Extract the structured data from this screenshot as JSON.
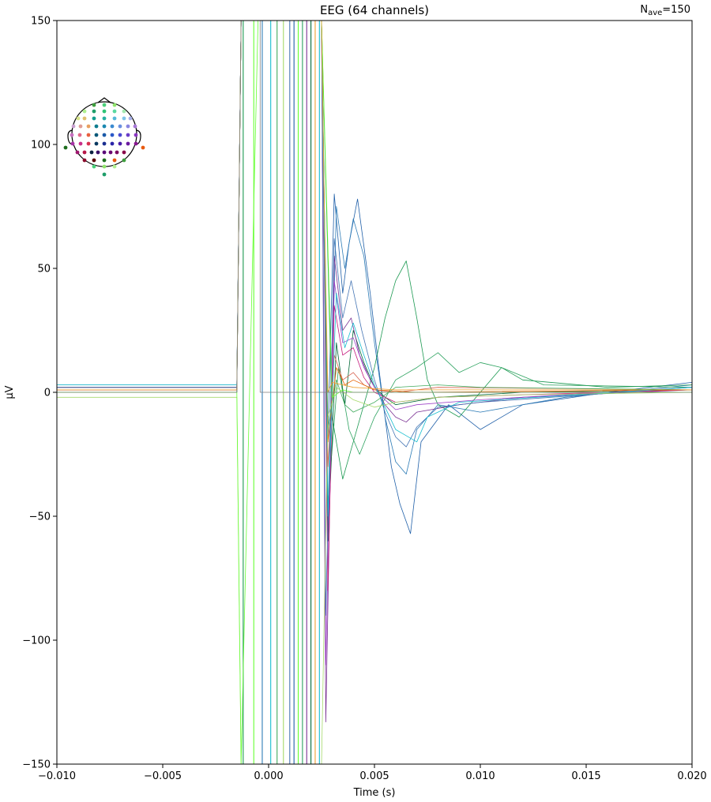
{
  "chart_data": {
    "type": "line",
    "title": "EEG (64 channels)",
    "nave": {
      "prefix": "N",
      "sub": "ave",
      "suffix": "=150"
    },
    "xlabel": "Time (s)",
    "ylabel": "µV",
    "xlim": [
      -0.01,
      0.02
    ],
    "ylim": [
      -150,
      150
    ],
    "xticks": [
      -0.01,
      -0.005,
      0.0,
      0.005,
      0.01,
      0.015,
      0.02
    ],
    "xtick_labels": [
      "−0.010",
      "−0.005",
      "0.000",
      "0.005",
      "0.010",
      "0.015",
      "0.020"
    ],
    "yticks": [
      -150,
      -100,
      -50,
      0,
      50,
      100,
      150
    ],
    "ytick_labels": [
      "−150",
      "−100",
      "−50",
      "0",
      "50",
      "100",
      "150"
    ],
    "grid": false,
    "legend": "sensor-topomap top-left",
    "series": [
      {
        "color": "#1f5fa8",
        "values": [
          [
            -0.01,
            2
          ],
          [
            -0.0015,
            2
          ],
          [
            -0.0013,
            150
          ],
          [
            0.0025,
            150
          ],
          [
            0.0028,
            -20
          ],
          [
            0.0031,
            80
          ],
          [
            0.0035,
            40
          ],
          [
            0.0038,
            60
          ],
          [
            0.0042,
            78
          ],
          [
            0.0048,
            40
          ],
          [
            0.0052,
            10
          ],
          [
            0.0058,
            -30
          ],
          [
            0.0062,
            -45
          ],
          [
            0.0067,
            -57
          ],
          [
            0.0072,
            -20
          ],
          [
            0.0085,
            -5
          ],
          [
            0.01,
            -15
          ],
          [
            0.012,
            -5
          ],
          [
            0.016,
            0
          ],
          [
            0.02,
            4
          ]
        ]
      },
      {
        "color": "#2c7bb6",
        "values": [
          [
            -0.01,
            3
          ],
          [
            -0.0015,
            3
          ],
          [
            -0.0013,
            150
          ],
          [
            0.0025,
            150
          ],
          [
            0.0028,
            -60
          ],
          [
            0.0032,
            75
          ],
          [
            0.0036,
            50
          ],
          [
            0.004,
            70
          ],
          [
            0.0045,
            55
          ],
          [
            0.005,
            20
          ],
          [
            0.0055,
            -10
          ],
          [
            0.006,
            -28
          ],
          [
            0.0065,
            -33
          ],
          [
            0.007,
            -15
          ],
          [
            0.008,
            -5
          ],
          [
            0.01,
            -8
          ],
          [
            0.014,
            -2
          ],
          [
            0.02,
            3
          ]
        ]
      },
      {
        "color": "#1a9850",
        "values": [
          [
            -0.01,
            1
          ],
          [
            -0.0015,
            1
          ],
          [
            -0.0013,
            150
          ],
          [
            0.0025,
            150
          ],
          [
            0.003,
            -10
          ],
          [
            0.0035,
            -35
          ],
          [
            0.004,
            -20
          ],
          [
            0.0045,
            -5
          ],
          [
            0.005,
            10
          ],
          [
            0.0055,
            30
          ],
          [
            0.006,
            45
          ],
          [
            0.0065,
            53
          ],
          [
            0.007,
            30
          ],
          [
            0.0075,
            5
          ],
          [
            0.008,
            -5
          ],
          [
            0.009,
            -10
          ],
          [
            0.01,
            0
          ],
          [
            0.011,
            10
          ],
          [
            0.012,
            5
          ],
          [
            0.016,
            2
          ],
          [
            0.02,
            3
          ]
        ]
      },
      {
        "color": "#2ca25f",
        "values": [
          [
            -0.01,
            2
          ],
          [
            -0.0015,
            2
          ],
          [
            -0.0013,
            150
          ],
          [
            0.0025,
            150
          ],
          [
            0.0028,
            -45
          ],
          [
            0.0033,
            10
          ],
          [
            0.0038,
            -15
          ],
          [
            0.0043,
            -25
          ],
          [
            0.005,
            -10
          ],
          [
            0.006,
            5
          ],
          [
            0.007,
            10
          ],
          [
            0.008,
            16
          ],
          [
            0.009,
            8
          ],
          [
            0.01,
            12
          ],
          [
            0.011,
            10
          ],
          [
            0.013,
            3
          ],
          [
            0.02,
            2
          ]
        ]
      },
      {
        "color": "#006837",
        "values": [
          [
            -0.01,
            0
          ],
          [
            -0.0015,
            0
          ],
          [
            -0.0013,
            150
          ],
          [
            0.0025,
            150
          ],
          [
            0.0028,
            -60
          ],
          [
            0.0032,
            20
          ],
          [
            0.0036,
            -5
          ],
          [
            0.004,
            25
          ],
          [
            0.0045,
            12
          ],
          [
            0.005,
            2
          ],
          [
            0.0055,
            -2
          ],
          [
            0.006,
            -5
          ],
          [
            0.008,
            -2
          ],
          [
            0.012,
            0
          ],
          [
            0.02,
            1
          ]
        ]
      },
      {
        "color": "#7b3294",
        "values": [
          [
            -0.01,
            1
          ],
          [
            -0.0015,
            1
          ],
          [
            -0.0013,
            150
          ],
          [
            0.0025,
            150
          ],
          [
            0.0027,
            -133
          ],
          [
            0.0031,
            55
          ],
          [
            0.0035,
            25
          ],
          [
            0.0039,
            30
          ],
          [
            0.0043,
            15
          ],
          [
            0.0048,
            5
          ],
          [
            0.0055,
            -5
          ],
          [
            0.006,
            -10
          ],
          [
            0.0065,
            -12
          ],
          [
            0.007,
            -8
          ],
          [
            0.009,
            -5
          ],
          [
            0.012,
            -2
          ],
          [
            0.02,
            1
          ]
        ]
      },
      {
        "color": "#9e44c8",
        "values": [
          [
            -0.01,
            2
          ],
          [
            -0.0015,
            2
          ],
          [
            -0.0013,
            150
          ],
          [
            0.0025,
            150
          ],
          [
            0.0027,
            -110
          ],
          [
            0.0031,
            45
          ],
          [
            0.0035,
            20
          ],
          [
            0.004,
            22
          ],
          [
            0.0045,
            10
          ],
          [
            0.005,
            2
          ],
          [
            0.0055,
            -3
          ],
          [
            0.006,
            -7
          ],
          [
            0.007,
            -5
          ],
          [
            0.01,
            -3
          ],
          [
            0.02,
            2
          ]
        ]
      },
      {
        "color": "#c51b7d",
        "values": [
          [
            -0.01,
            1
          ],
          [
            -0.0015,
            1
          ],
          [
            -0.0013,
            150
          ],
          [
            0.0025,
            150
          ],
          [
            0.0028,
            -80
          ],
          [
            0.0031,
            35
          ],
          [
            0.0035,
            15
          ],
          [
            0.004,
            18
          ],
          [
            0.0045,
            6
          ],
          [
            0.005,
            0
          ],
          [
            0.006,
            -4
          ],
          [
            0.008,
            -2
          ],
          [
            0.02,
            1
          ]
        ]
      },
      {
        "color": "#d6604d",
        "values": [
          [
            -0.01,
            2
          ],
          [
            -0.0015,
            2
          ],
          [
            -0.0013,
            150
          ],
          [
            0.0025,
            150
          ],
          [
            0.0028,
            -30
          ],
          [
            0.0031,
            15
          ],
          [
            0.0035,
            5
          ],
          [
            0.004,
            8
          ],
          [
            0.0045,
            3
          ],
          [
            0.005,
            1
          ],
          [
            0.006,
            0
          ],
          [
            0.008,
            2
          ],
          [
            0.02,
            1
          ]
        ]
      },
      {
        "color": "#e66101",
        "values": [
          [
            -0.01,
            1
          ],
          [
            -0.0015,
            1
          ],
          [
            -0.0013,
            150
          ],
          [
            0.0025,
            150
          ],
          [
            0.0028,
            -20
          ],
          [
            0.0032,
            10
          ],
          [
            0.0036,
            3
          ],
          [
            0.004,
            5
          ],
          [
            0.005,
            1
          ],
          [
            0.007,
            0
          ],
          [
            0.02,
            1
          ]
        ]
      },
      {
        "color": "#4575b4",
        "values": [
          [
            -0.01,
            2
          ],
          [
            -0.0015,
            2
          ],
          [
            -0.0013,
            150
          ],
          [
            0.0025,
            150
          ],
          [
            0.0027,
            -90
          ],
          [
            0.0031,
            62
          ],
          [
            0.0035,
            30
          ],
          [
            0.0039,
            45
          ],
          [
            0.0044,
            25
          ],
          [
            0.005,
            5
          ],
          [
            0.0055,
            -8
          ],
          [
            0.006,
            -18
          ],
          [
            0.0065,
            -22
          ],
          [
            0.007,
            -14
          ],
          [
            0.008,
            -6
          ],
          [
            0.01,
            -4
          ],
          [
            0.02,
            2
          ]
        ]
      },
      {
        "color": "#17becf",
        "values": [
          [
            -0.01,
            3
          ],
          [
            -0.0015,
            3
          ],
          [
            -0.0013,
            150
          ],
          [
            0.0025,
            150
          ],
          [
            0.0028,
            -50
          ],
          [
            0.0032,
            40
          ],
          [
            0.0036,
            18
          ],
          [
            0.004,
            28
          ],
          [
            0.0045,
            15
          ],
          [
            0.005,
            3
          ],
          [
            0.0055,
            -6
          ],
          [
            0.006,
            -15
          ],
          [
            0.007,
            -20
          ],
          [
            0.0075,
            -10
          ],
          [
            0.009,
            -4
          ],
          [
            0.02,
            2
          ]
        ]
      },
      {
        "color": "#41ab5d",
        "values": [
          [
            -0.01,
            0
          ],
          [
            -0.0015,
            0
          ],
          [
            -0.0013,
            150
          ],
          [
            0.0025,
            150
          ],
          [
            0.0028,
            -15
          ],
          [
            0.0032,
            5
          ],
          [
            0.0036,
            -5
          ],
          [
            0.004,
            -8
          ],
          [
            0.005,
            -4
          ],
          [
            0.006,
            2
          ],
          [
            0.008,
            3
          ],
          [
            0.01,
            2
          ],
          [
            0.02,
            1
          ]
        ]
      },
      {
        "color": "#a6d96a",
        "values": [
          [
            -0.01,
            -2
          ],
          [
            -0.0015,
            -2
          ],
          [
            -0.0013,
            -150
          ],
          [
            0.0025,
            -150
          ],
          [
            0.0028,
            -10
          ],
          [
            0.0032,
            2
          ],
          [
            0.004,
            -3
          ],
          [
            0.005,
            -6
          ],
          [
            0.006,
            -4
          ],
          [
            0.008,
            -2
          ],
          [
            0.012,
            -1
          ],
          [
            0.02,
            0
          ]
        ]
      },
      {
        "color": "#66ff33",
        "values": [
          [
            -0.01,
            0
          ],
          [
            -0.0015,
            0
          ],
          [
            -0.0013,
            -150
          ],
          [
            -0.0005,
            150
          ],
          [
            0.0025,
            150
          ],
          [
            0.003,
            -2
          ],
          [
            0.0035,
            1
          ],
          [
            0.004,
            0
          ],
          [
            0.006,
            0
          ],
          [
            0.02,
            0
          ]
        ]
      },
      {
        "color": "#f0a030",
        "values": [
          [
            -0.01,
            1
          ],
          [
            -0.0015,
            1
          ],
          [
            -0.0013,
            150
          ],
          [
            0.0025,
            150
          ],
          [
            0.0026,
            90
          ],
          [
            0.0028,
            0
          ],
          [
            0.003,
            4
          ],
          [
            0.004,
            2
          ],
          [
            0.006,
            1
          ],
          [
            0.02,
            1
          ]
        ]
      },
      {
        "color": "#7f7f7f",
        "values": [
          [
            -0.01,
            0
          ],
          [
            -0.0015,
            0
          ],
          [
            -0.0013,
            150
          ],
          [
            -0.0004,
            150
          ],
          [
            -0.0004,
            0
          ],
          [
            0.02,
            0
          ]
        ]
      }
    ],
    "artifact_lines": {
      "x": [
        -0.0012,
        -0.0007,
        -0.0003,
        0.0001,
        0.0004,
        0.0007,
        0.001,
        0.0012,
        0.0014,
        0.0016,
        0.0018,
        0.002,
        0.0022,
        0.0024
      ],
      "colors": [
        "#1a9850",
        "#66ff33",
        "#2c7bb6",
        "#17becf",
        "#41ab5d",
        "#a6d96a",
        "#4575b4",
        "#1f5fa8",
        "#66ff33",
        "#2ca25f",
        "#7b3294",
        "#006837",
        "#f0a030",
        "#17becf"
      ]
    },
    "topomap": {
      "sensor_colors": [
        "#3d9e3d",
        "#4bd07a",
        "#8fe46c",
        "#b0f090",
        "#1f9e6a",
        "#2ec476",
        "#5ad8a0",
        "#a2e8b0",
        "#d6e48c",
        "#e0c070",
        "#129e8e",
        "#25b0a0",
        "#55b8d8",
        "#80c4e8",
        "#a8b0e8",
        "#c8a0d0",
        "#e09c94",
        "#e8a060",
        "#0e7c8e",
        "#1a88b0",
        "#3a8ad0",
        "#6a90e0",
        "#8a86e0",
        "#a878d8",
        "#c870c0",
        "#e06a8a",
        "#e86040",
        "#0a5878",
        "#1a5aa8",
        "#2a58c8",
        "#4a4ad0",
        "#6a3ec8",
        "#8a34c0",
        "#a832a8",
        "#c83088",
        "#d83050",
        "#0a3860",
        "#1a2e90",
        "#2a24a8",
        "#4a1ea8",
        "#6a1aa0",
        "#881890",
        "#a01870",
        "#b81848",
        "#0a2040",
        "#3a1068",
        "#5a0a78",
        "#6a0a70",
        "#7a0a60",
        "#8a0a4a",
        "#8a0a2a",
        "#5a0000",
        "#1e6e1e",
        "#e85a10"
      ]
    }
  }
}
